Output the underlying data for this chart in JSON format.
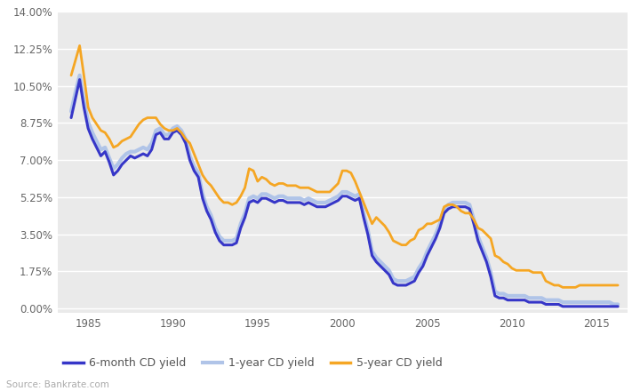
{
  "title": "",
  "xlabel": "",
  "ylabel": "",
  "plot_bg_color": "#eaeaea",
  "fig_bg_color": "#ffffff",
  "ytick_labels": [
    "0.00%",
    "1.75%",
    "3.50%",
    "5.25%",
    "7.00%",
    "8.75%",
    "10.50%",
    "12.25%",
    "14.00%"
  ],
  "ytick_values": [
    0.0,
    1.75,
    3.5,
    5.25,
    7.0,
    8.75,
    10.5,
    12.25,
    14.0
  ],
  "xtick_values": [
    1985,
    1990,
    1995,
    2000,
    2005,
    2010,
    2015
  ],
  "xlim": [
    1983.2,
    2016.8
  ],
  "ylim": [
    -0.2,
    14.0
  ],
  "source_text": "Source: Bankrate.com",
  "legend_labels": [
    "6-month CD yield",
    "1-year CD yield",
    "5-year CD yield"
  ],
  "color_6mo": "#3636c8",
  "color_1yr": "#b0c4e8",
  "color_5yr": "#f5a623",
  "lw_6mo": 2.2,
  "lw_1yr": 3.0,
  "lw_5yr": 2.0,
  "years": [
    1984.0,
    1984.25,
    1984.5,
    1984.75,
    1985.0,
    1985.25,
    1985.5,
    1985.75,
    1986.0,
    1986.25,
    1986.5,
    1986.75,
    1987.0,
    1987.25,
    1987.5,
    1987.75,
    1988.0,
    1988.25,
    1988.5,
    1988.75,
    1989.0,
    1989.25,
    1989.5,
    1989.75,
    1990.0,
    1990.25,
    1990.5,
    1990.75,
    1991.0,
    1991.25,
    1991.5,
    1991.75,
    1992.0,
    1992.25,
    1992.5,
    1992.75,
    1993.0,
    1993.25,
    1993.5,
    1993.75,
    1994.0,
    1994.25,
    1994.5,
    1994.75,
    1995.0,
    1995.25,
    1995.5,
    1995.75,
    1996.0,
    1996.25,
    1996.5,
    1996.75,
    1997.0,
    1997.25,
    1997.5,
    1997.75,
    1998.0,
    1998.25,
    1998.5,
    1998.75,
    1999.0,
    1999.25,
    1999.5,
    1999.75,
    2000.0,
    2000.25,
    2000.5,
    2000.75,
    2001.0,
    2001.25,
    2001.5,
    2001.75,
    2002.0,
    2002.25,
    2002.5,
    2002.75,
    2003.0,
    2003.25,
    2003.5,
    2003.75,
    2004.0,
    2004.25,
    2004.5,
    2004.75,
    2005.0,
    2005.25,
    2005.5,
    2005.75,
    2006.0,
    2006.25,
    2006.5,
    2006.75,
    2007.0,
    2007.25,
    2007.5,
    2007.75,
    2008.0,
    2008.25,
    2008.5,
    2008.75,
    2009.0,
    2009.25,
    2009.5,
    2009.75,
    2010.0,
    2010.25,
    2010.5,
    2010.75,
    2011.0,
    2011.25,
    2011.5,
    2011.75,
    2012.0,
    2012.25,
    2012.5,
    2012.75,
    2013.0,
    2013.25,
    2013.5,
    2013.75,
    2014.0,
    2014.25,
    2014.5,
    2014.75,
    2015.0,
    2015.25,
    2015.5,
    2015.75,
    2016.0,
    2016.25
  ],
  "vals_6mo": [
    9.0,
    9.9,
    10.8,
    9.5,
    8.5,
    8.0,
    7.6,
    7.2,
    7.4,
    6.9,
    6.3,
    6.5,
    6.8,
    7.0,
    7.2,
    7.1,
    7.2,
    7.3,
    7.2,
    7.5,
    8.2,
    8.3,
    8.0,
    8.0,
    8.3,
    8.4,
    8.2,
    7.8,
    7.0,
    6.5,
    6.2,
    5.2,
    4.6,
    4.2,
    3.6,
    3.2,
    3.0,
    3.0,
    3.0,
    3.1,
    3.8,
    4.3,
    5.0,
    5.1,
    5.0,
    5.2,
    5.2,
    5.1,
    5.0,
    5.1,
    5.1,
    5.0,
    5.0,
    5.0,
    5.0,
    4.9,
    5.0,
    4.9,
    4.8,
    4.8,
    4.8,
    4.9,
    5.0,
    5.1,
    5.3,
    5.3,
    5.2,
    5.1,
    5.2,
    4.3,
    3.5,
    2.5,
    2.2,
    2.0,
    1.8,
    1.6,
    1.2,
    1.1,
    1.1,
    1.1,
    1.2,
    1.3,
    1.7,
    2.0,
    2.5,
    2.9,
    3.3,
    3.8,
    4.5,
    4.7,
    4.8,
    4.8,
    4.8,
    4.8,
    4.7,
    4.0,
    3.2,
    2.7,
    2.2,
    1.5,
    0.6,
    0.5,
    0.5,
    0.4,
    0.4,
    0.4,
    0.4,
    0.4,
    0.3,
    0.3,
    0.3,
    0.3,
    0.2,
    0.2,
    0.2,
    0.2,
    0.1,
    0.1,
    0.1,
    0.1,
    0.1,
    0.1,
    0.1,
    0.1,
    0.1,
    0.1,
    0.1,
    0.1,
    0.1,
    0.1
  ],
  "vals_1yr": [
    9.3,
    10.2,
    11.0,
    9.8,
    8.8,
    8.3,
    7.9,
    7.5,
    7.6,
    7.1,
    6.6,
    6.8,
    7.1,
    7.3,
    7.4,
    7.4,
    7.5,
    7.6,
    7.5,
    7.8,
    8.4,
    8.5,
    8.2,
    8.2,
    8.5,
    8.6,
    8.4,
    8.0,
    7.2,
    6.7,
    6.4,
    5.4,
    4.8,
    4.4,
    3.8,
    3.4,
    3.2,
    3.2,
    3.2,
    3.3,
    4.0,
    4.5,
    5.2,
    5.3,
    5.2,
    5.4,
    5.4,
    5.3,
    5.2,
    5.3,
    5.3,
    5.2,
    5.2,
    5.2,
    5.2,
    5.1,
    5.2,
    5.1,
    5.0,
    5.0,
    5.0,
    5.1,
    5.2,
    5.3,
    5.5,
    5.5,
    5.4,
    5.3,
    5.4,
    4.5,
    3.7,
    2.7,
    2.4,
    2.2,
    2.0,
    1.8,
    1.4,
    1.3,
    1.3,
    1.3,
    1.4,
    1.5,
    1.9,
    2.2,
    2.7,
    3.1,
    3.5,
    4.0,
    4.7,
    4.9,
    5.0,
    5.0,
    5.0,
    5.0,
    4.9,
    4.2,
    3.4,
    2.9,
    2.4,
    1.7,
    0.8,
    0.7,
    0.7,
    0.6,
    0.6,
    0.6,
    0.6,
    0.6,
    0.5,
    0.5,
    0.5,
    0.5,
    0.4,
    0.4,
    0.4,
    0.4,
    0.3,
    0.3,
    0.3,
    0.3,
    0.3,
    0.3,
    0.3,
    0.3,
    0.3,
    0.3,
    0.3,
    0.3,
    0.2,
    0.2
  ],
  "vals_5yr": [
    11.0,
    11.7,
    12.4,
    11.0,
    9.5,
    9.0,
    8.7,
    8.4,
    8.3,
    8.0,
    7.6,
    7.7,
    7.9,
    8.0,
    8.1,
    8.4,
    8.7,
    8.9,
    9.0,
    9.0,
    9.0,
    8.7,
    8.5,
    8.4,
    8.4,
    8.5,
    8.3,
    8.0,
    7.8,
    7.3,
    6.8,
    6.3,
    6.0,
    5.8,
    5.5,
    5.2,
    5.0,
    5.0,
    4.9,
    5.0,
    5.3,
    5.7,
    6.6,
    6.5,
    6.0,
    6.2,
    6.1,
    5.9,
    5.8,
    5.9,
    5.9,
    5.8,
    5.8,
    5.8,
    5.7,
    5.7,
    5.7,
    5.6,
    5.5,
    5.5,
    5.5,
    5.5,
    5.7,
    5.9,
    6.5,
    6.5,
    6.4,
    6.0,
    5.5,
    5.0,
    4.5,
    4.0,
    4.3,
    4.1,
    3.9,
    3.6,
    3.2,
    3.1,
    3.0,
    3.0,
    3.2,
    3.3,
    3.7,
    3.8,
    4.0,
    4.0,
    4.1,
    4.2,
    4.8,
    4.9,
    4.9,
    4.8,
    4.6,
    4.5,
    4.5,
    4.2,
    3.8,
    3.7,
    3.5,
    3.3,
    2.5,
    2.4,
    2.2,
    2.1,
    1.9,
    1.8,
    1.8,
    1.8,
    1.8,
    1.7,
    1.7,
    1.7,
    1.3,
    1.2,
    1.1,
    1.1,
    1.0,
    1.0,
    1.0,
    1.0,
    1.1,
    1.1,
    1.1,
    1.1,
    1.1,
    1.1,
    1.1,
    1.1,
    1.1,
    1.1
  ]
}
